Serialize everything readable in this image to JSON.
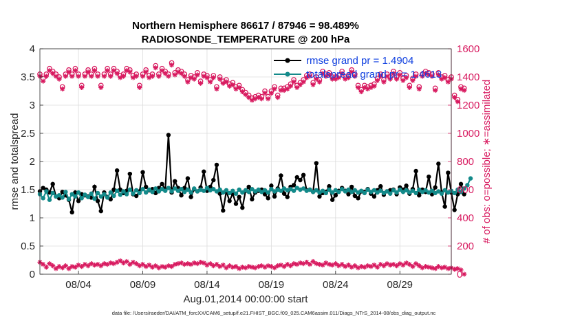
{
  "chart_data": {
    "type": "line",
    "title": "Northern Hemisphere 86617 / 87946 = 98.489%",
    "subtitle": "RADIOSONDE_TEMPERATURE @ 200 hPa",
    "xlabel": "Aug.01,2014 00:00:00 start",
    "ylabel_left": "rmse and totalspread",
    "ylabel_right": "# of obs: o=possible; ∗=assimilated",
    "xlim": [
      1,
      33
    ],
    "ylim_left": [
      0,
      4
    ],
    "ylim_right": [
      0,
      1600
    ],
    "x_ticks": [
      4,
      9,
      14,
      19,
      24,
      29
    ],
    "x_tick_labels": [
      "08/04",
      "08/09",
      "08/14",
      "08/19",
      "08/24",
      "08/29"
    ],
    "y_ticks_left": [
      0,
      0.5,
      1,
      1.5,
      2,
      2.5,
      3,
      3.5,
      4
    ],
    "y_tick_labels_left": [
      "0",
      "0.5",
      "1",
      "1.5",
      "2",
      "2.5",
      "3",
      "3.5",
      "4"
    ],
    "y_ticks_right": [
      0,
      200,
      400,
      600,
      800,
      1000,
      1200,
      1400,
      1600
    ],
    "y_tick_labels_right": [
      "0",
      "200",
      "400",
      "600",
      "800",
      "1000",
      "1200",
      "1400",
      "1600"
    ],
    "grid": true,
    "legend_position": "top-right",
    "footnote": "data file: /Users/raeder/DAI/ATM_forcXX/CAM6_setup/f.e21.FHIST_BGC.f09_025.CAM6assim.011/Diags_NTrS_2014-08/obs_diag_output.nc",
    "x_start": 1.0,
    "x_step": 0.25,
    "colors": {
      "rmse": "#000000",
      "spread": "#138a8a",
      "obs": "#d81b60"
    },
    "series": [
      {
        "name": "rmse",
        "legend": "rmse grand pr = 1.4904",
        "axis": "left",
        "values": [
          1.47,
          1.53,
          1.5,
          1.45,
          1.6,
          1.38,
          1.35,
          1.46,
          1.4,
          1.32,
          1.1,
          1.45,
          1.3,
          1.42,
          1.4,
          1.38,
          1.36,
          1.55,
          1.3,
          1.12,
          1.45,
          1.37,
          1.33,
          1.5,
          1.84,
          1.5,
          1.44,
          1.48,
          1.78,
          1.42,
          1.39,
          1.47,
          1.81,
          1.55,
          1.49,
          1.51,
          1.44,
          1.53,
          1.6,
          1.5,
          2.47,
          1.45,
          1.65,
          1.53,
          1.4,
          1.53,
          1.7,
          1.37,
          1.51,
          1.47,
          1.54,
          1.82,
          1.48,
          1.55,
          1.67,
          1.94,
          1.43,
          1.13,
          1.47,
          1.3,
          1.43,
          1.25,
          1.37,
          1.18,
          1.48,
          1.55,
          1.33,
          1.45,
          1.48,
          1.5,
          1.42,
          1.35,
          1.57,
          1.38,
          1.52,
          1.75,
          1.43,
          1.37,
          1.55,
          1.58,
          1.72,
          1.67,
          1.76,
          1.49,
          1.5,
          1.46,
          1.97,
          1.38,
          1.44,
          1.46,
          1.56,
          1.32,
          1.4,
          1.48,
          1.53,
          1.48,
          1.42,
          1.55,
          1.39,
          1.35,
          1.47,
          1.46,
          1.51,
          1.43,
          1.38,
          1.49,
          1.56,
          1.41,
          1.47,
          1.49,
          1.5,
          1.42,
          1.54,
          1.5,
          1.57,
          1.43,
          1.51,
          1.83,
          1.4,
          1.5,
          1.46,
          1.73,
          1.42,
          1.54,
          1.96,
          1.45,
          1.2,
          1.8,
          1.45,
          1.14,
          1.42,
          1.6,
          1.42
        ]
      },
      {
        "name": "totalspread",
        "legend": "totalspread grand pr = 1.4613",
        "axis": "left",
        "values": [
          1.42,
          1.35,
          1.47,
          1.32,
          1.44,
          1.38,
          1.4,
          1.36,
          1.46,
          1.33,
          1.42,
          1.38,
          1.45,
          1.35,
          1.41,
          1.37,
          1.43,
          1.34,
          1.44,
          1.38,
          1.42,
          1.36,
          1.45,
          1.39,
          1.48,
          1.41,
          1.47,
          1.42,
          1.5,
          1.43,
          1.49,
          1.44,
          1.51,
          1.45,
          1.5,
          1.46,
          1.52,
          1.47,
          1.51,
          1.48,
          1.53,
          1.47,
          1.52,
          1.48,
          1.51,
          1.46,
          1.5,
          1.45,
          1.52,
          1.47,
          1.5,
          1.48,
          1.53,
          1.49,
          1.51,
          1.47,
          1.5,
          1.45,
          1.49,
          1.44,
          1.48,
          1.43,
          1.5,
          1.45,
          1.49,
          1.46,
          1.51,
          1.47,
          1.5,
          1.46,
          1.49,
          1.45,
          1.51,
          1.47,
          1.5,
          1.48,
          1.52,
          1.49,
          1.51,
          1.48,
          1.53,
          1.5,
          1.52,
          1.48,
          1.5,
          1.46,
          1.49,
          1.45,
          1.48,
          1.44,
          1.5,
          1.45,
          1.49,
          1.46,
          1.51,
          1.47,
          1.5,
          1.46,
          1.49,
          1.45,
          1.48,
          1.44,
          1.5,
          1.46,
          1.49,
          1.45,
          1.48,
          1.44,
          1.47,
          1.43,
          1.49,
          1.45,
          1.5,
          1.46,
          1.49,
          1.45,
          1.48,
          1.44,
          1.5,
          1.46,
          1.49,
          1.45,
          1.48,
          1.44,
          1.47,
          1.43,
          1.49,
          1.45,
          1.48,
          1.44,
          1.5,
          1.46,
          1.52,
          1.58,
          1.7
        ]
      },
      {
        "name": "obs_possible",
        "axis": "right",
        "marker": "o",
        "values": [
          1420,
          1390,
          1420,
          1460,
          1440,
          1420,
          1400,
          1330,
          1420,
          1450,
          1420,
          1460,
          1420,
          1340,
          1420,
          1450,
          1420,
          1460,
          1420,
          1340,
          1420,
          1460,
          1420,
          1460,
          1440,
          1410,
          1420,
          1460,
          1450,
          1410,
          1420,
          1340,
          1420,
          1450,
          1410,
          1420,
          1480,
          1420,
          1460,
          1440,
          1420,
          1500,
          1430,
          1450,
          1440,
          1420,
          1380,
          1410,
          1400,
          1430,
          1370,
          1420,
          1410,
          1380,
          1410,
          1330,
          1400,
          1370,
          1380,
          1350,
          1360,
          1330,
          1340,
          1310,
          1290,
          1270,
          1250,
          1260,
          1270,
          1260,
          1300,
          1260,
          1300,
          1330,
          1270,
          1320,
          1320,
          1330,
          1350,
          1380,
          1340,
          1360,
          1380,
          1410,
          1420,
          1360,
          1400,
          1380,
          1440,
          1420,
          1430,
          1400,
          1400,
          1410,
          1440,
          1400,
          1410,
          1450,
          1420,
          1340,
          1310,
          1340,
          1330,
          1340,
          1350,
          1390,
          1420,
          1380,
          1420,
          1400,
          1440,
          1400,
          1430,
          1390,
          1410,
          1340,
          1390,
          1420,
          1330,
          1420,
          1440,
          1430,
          1420,
          1320,
          1430,
          1400,
          1410,
          1380,
          1400,
          1270,
          1240,
          1330,
          1320
        ]
      },
      {
        "name": "obs_assimilated",
        "axis": "right",
        "marker": "*",
        "values": [
          1405,
          1370,
          1405,
          1445,
          1425,
          1405,
          1385,
          1315,
          1405,
          1435,
          1405,
          1445,
          1405,
          1325,
          1405,
          1435,
          1405,
          1445,
          1405,
          1325,
          1405,
          1445,
          1405,
          1445,
          1425,
          1395,
          1405,
          1445,
          1435,
          1395,
          1405,
          1325,
          1405,
          1435,
          1395,
          1405,
          1465,
          1405,
          1445,
          1425,
          1405,
          1485,
          1415,
          1435,
          1425,
          1405,
          1365,
          1395,
          1385,
          1415,
          1355,
          1405,
          1395,
          1365,
          1395,
          1315,
          1385,
          1355,
          1365,
          1335,
          1345,
          1315,
          1325,
          1295,
          1275,
          1255,
          1235,
          1245,
          1255,
          1245,
          1285,
          1245,
          1285,
          1315,
          1255,
          1305,
          1305,
          1315,
          1335,
          1365,
          1325,
          1345,
          1365,
          1395,
          1405,
          1345,
          1385,
          1365,
          1425,
          1405,
          1415,
          1385,
          1385,
          1395,
          1425,
          1385,
          1395,
          1435,
          1405,
          1325,
          1295,
          1325,
          1315,
          1325,
          1335,
          1375,
          1405,
          1365,
          1405,
          1385,
          1425,
          1385,
          1415,
          1375,
          1395,
          1325,
          1375,
          1405,
          1315,
          1405,
          1425,
          1415,
          1405,
          1305,
          1415,
          1385,
          1395,
          1365,
          1385,
          1255,
          1225,
          1315,
          1305
        ]
      },
      {
        "name": "obs_low_assimilated",
        "axis": "right",
        "marker": "*",
        "values": [
          85,
          70,
          50,
          75,
          60,
          40,
          55,
          45,
          60,
          40,
          55,
          50,
          65,
          55,
          70,
          60,
          75,
          65,
          70,
          60,
          75,
          70,
          80,
          75,
          85,
          95,
          80,
          90,
          70,
          85,
          75,
          60,
          70,
          55,
          65,
          50,
          60,
          45,
          55,
          50,
          60,
          55,
          70,
          75,
          80,
          70,
          75,
          70,
          80,
          75,
          85,
          80,
          65,
          75,
          60,
          70,
          55,
          65,
          45,
          60,
          50,
          55,
          40,
          50,
          45,
          55,
          50,
          45,
          55,
          60,
          50,
          60,
          55,
          45,
          60,
          65,
          55,
          70,
          60,
          75,
          70,
          80,
          75,
          85,
          70,
          90,
          75,
          70,
          65,
          80,
          70,
          65,
          75,
          60,
          70,
          55,
          65,
          50,
          60,
          45,
          55,
          50,
          60,
          55,
          65,
          50,
          70,
          60,
          75,
          65,
          70,
          60,
          75,
          65,
          80,
          70,
          55,
          75,
          60,
          45,
          55,
          50,
          45,
          40,
          55,
          45,
          50,
          40,
          45,
          35,
          40,
          30,
          0
        ]
      }
    ]
  }
}
